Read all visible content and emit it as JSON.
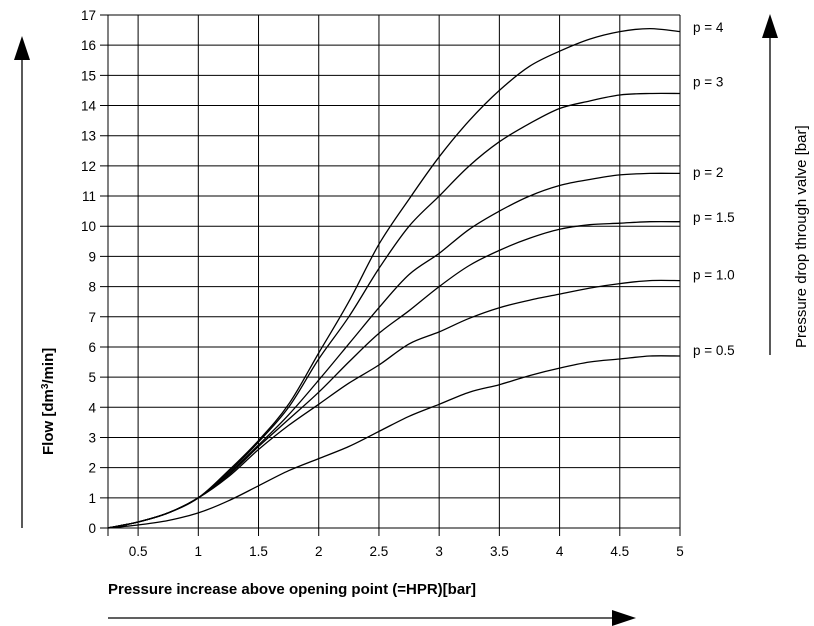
{
  "chart_data": {
    "type": "line",
    "xlabel": "Pressure increase above opening point (=HPR)[bar]",
    "ylabel_main": "Flow [dm",
    "ylabel_sup": "3",
    "ylabel_end": "/min]",
    "right_label": "Pressure drop through valve [bar]",
    "xlim": [
      0.25,
      5.0
    ],
    "ylim": [
      0,
      17
    ],
    "x_ticks": [
      0.5,
      1,
      1.5,
      2,
      2.5,
      3,
      3.5,
      4,
      4.5,
      5
    ],
    "x_tick_labels": [
      "0.5",
      "1",
      "1.5",
      "2",
      "2.5",
      "3",
      "3.5",
      "4",
      "4.5",
      "5"
    ],
    "y_ticks": [
      0,
      1,
      2,
      3,
      4,
      5,
      6,
      7,
      8,
      9,
      10,
      11,
      12,
      13,
      14,
      15,
      16,
      17
    ],
    "y_tick_labels": [
      "0",
      "1",
      "2",
      "3",
      "4",
      "5",
      "6",
      "7",
      "8",
      "9",
      "10",
      "11",
      "12",
      "13",
      "14",
      "15",
      "16",
      "17"
    ],
    "grid": true,
    "series": [
      {
        "name": "p = 4",
        "label_y": 16.6,
        "x": [
          0.25,
          0.5,
          0.75,
          1.0,
          1.25,
          1.5,
          1.75,
          2.0,
          2.25,
          2.5,
          2.75,
          3.0,
          3.25,
          3.5,
          3.75,
          4.0,
          4.25,
          4.5,
          4.75,
          5.0
        ],
        "y": [
          0,
          0.2,
          0.5,
          1.0,
          1.9,
          2.9,
          4.1,
          5.8,
          7.5,
          9.4,
          10.9,
          12.3,
          13.5,
          14.5,
          15.3,
          15.8,
          16.2,
          16.45,
          16.55,
          16.45
        ]
      },
      {
        "name": "p = 3",
        "label_y": 14.8,
        "x": [
          0.25,
          0.5,
          0.75,
          1.0,
          1.25,
          1.5,
          1.75,
          2.0,
          2.25,
          2.5,
          2.75,
          3.0,
          3.25,
          3.5,
          3.75,
          4.0,
          4.25,
          4.5,
          4.75,
          5.0
        ],
        "y": [
          0,
          0.2,
          0.5,
          1.0,
          1.85,
          2.85,
          4.0,
          5.6,
          7.0,
          8.6,
          10.0,
          11.0,
          12.0,
          12.8,
          13.4,
          13.9,
          14.15,
          14.35,
          14.4,
          14.4
        ]
      },
      {
        "name": "p = 2",
        "label_y": 11.8,
        "x": [
          0.25,
          0.5,
          0.75,
          1.0,
          1.25,
          1.5,
          1.75,
          2.0,
          2.25,
          2.5,
          2.75,
          3.0,
          3.25,
          3.5,
          3.75,
          4.0,
          4.25,
          4.5,
          4.75,
          5.0
        ],
        "y": [
          0,
          0.2,
          0.5,
          1.0,
          1.8,
          2.75,
          3.75,
          4.9,
          6.1,
          7.3,
          8.4,
          9.1,
          9.9,
          10.5,
          11.0,
          11.35,
          11.55,
          11.7,
          11.75,
          11.75
        ]
      },
      {
        "name": "p = 1.5",
        "label_y": 10.3,
        "x": [
          0.25,
          0.5,
          0.75,
          1.0,
          1.25,
          1.5,
          1.75,
          2.0,
          2.25,
          2.5,
          2.75,
          3.0,
          3.25,
          3.5,
          3.75,
          4.0,
          4.25,
          4.5,
          4.75,
          5.0
        ],
        "y": [
          0,
          0.2,
          0.5,
          1.0,
          1.75,
          2.7,
          3.6,
          4.5,
          5.5,
          6.45,
          7.2,
          8.0,
          8.7,
          9.2,
          9.6,
          9.9,
          10.05,
          10.1,
          10.15,
          10.15
        ]
      },
      {
        "name": "p = 1.0",
        "label_y": 8.4,
        "x": [
          0.25,
          0.5,
          0.75,
          1.0,
          1.25,
          1.5,
          1.75,
          2.0,
          2.25,
          2.5,
          2.75,
          3.0,
          3.25,
          3.5,
          3.75,
          4.0,
          4.25,
          4.5,
          4.75,
          5.0
        ],
        "y": [
          0,
          0.2,
          0.5,
          1.0,
          1.7,
          2.6,
          3.4,
          4.1,
          4.8,
          5.4,
          6.1,
          6.5,
          6.95,
          7.3,
          7.55,
          7.75,
          7.95,
          8.1,
          8.2,
          8.2
        ]
      },
      {
        "name": "p = 0.5",
        "label_y": 5.9,
        "x": [
          0.25,
          0.5,
          0.75,
          1.0,
          1.25,
          1.5,
          1.75,
          2.0,
          2.25,
          2.5,
          2.75,
          3.0,
          3.25,
          3.5,
          3.75,
          4.0,
          4.25,
          4.5,
          4.75,
          5.0
        ],
        "y": [
          0,
          0.1,
          0.25,
          0.5,
          0.9,
          1.4,
          1.9,
          2.3,
          2.7,
          3.2,
          3.7,
          4.1,
          4.5,
          4.75,
          5.05,
          5.3,
          5.5,
          5.6,
          5.7,
          5.7
        ]
      }
    ]
  }
}
